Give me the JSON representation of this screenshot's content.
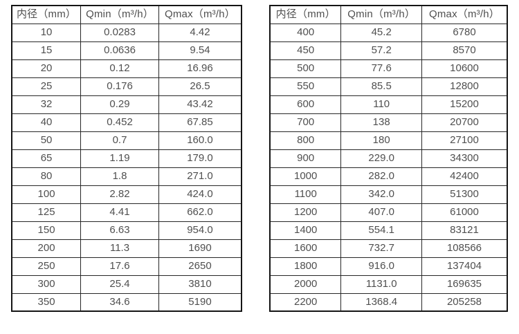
{
  "page": {
    "background_color": "#ffffff",
    "border_color": "#141414",
    "text_color": "#4f4f4f"
  },
  "left": {
    "headers": [
      "内径（mm）",
      "Qmin（m³/h）",
      "Qmax（m³/h）"
    ],
    "rows": [
      [
        "10",
        "0.0283",
        "4.42"
      ],
      [
        "15",
        "0.0636",
        "9.54"
      ],
      [
        "20",
        "0.12",
        "16.96"
      ],
      [
        "25",
        "0.176",
        "26.5"
      ],
      [
        "32",
        "0.29",
        "43.42"
      ],
      [
        "40",
        "0.452",
        "67.85"
      ],
      [
        "50",
        "0.7",
        "160.0"
      ],
      [
        "65",
        "1.19",
        "179.0"
      ],
      [
        "80",
        "1.8",
        "271.0"
      ],
      [
        "100",
        "2.82",
        "424.0"
      ],
      [
        "125",
        "4.41",
        "662.0"
      ],
      [
        "150",
        "6.63",
        "954.0"
      ],
      [
        "200",
        "11.3",
        "1690"
      ],
      [
        "250",
        "17.6",
        "2650"
      ],
      [
        "300",
        "25.4",
        "3810"
      ],
      [
        "350",
        "34.6",
        "5190"
      ]
    ]
  },
  "right": {
    "headers": [
      "内径（mm）",
      "Qmin（m³/h）",
      "Qmax（m³/h）"
    ],
    "rows": [
      [
        "400",
        "45.2",
        "6780"
      ],
      [
        "450",
        "57.2",
        "8570"
      ],
      [
        "500",
        "77.6",
        "10600"
      ],
      [
        "550",
        "85.5",
        "12800"
      ],
      [
        "600",
        "110",
        "15200"
      ],
      [
        "700",
        "138",
        "20700"
      ],
      [
        "800",
        "180",
        "27100"
      ],
      [
        "900",
        "229.0",
        "34300"
      ],
      [
        "1000",
        "282.0",
        "42400"
      ],
      [
        "1100",
        "342.0",
        "51300"
      ],
      [
        "1200",
        "407.0",
        "61000"
      ],
      [
        "1400",
        "554.1",
        "83121"
      ],
      [
        "1600",
        "732.7",
        "108566"
      ],
      [
        "1800",
        "916.0",
        "137404"
      ],
      [
        "2000",
        "1131.0",
        "169635"
      ],
      [
        "2200",
        "1368.4",
        "205258"
      ]
    ]
  }
}
